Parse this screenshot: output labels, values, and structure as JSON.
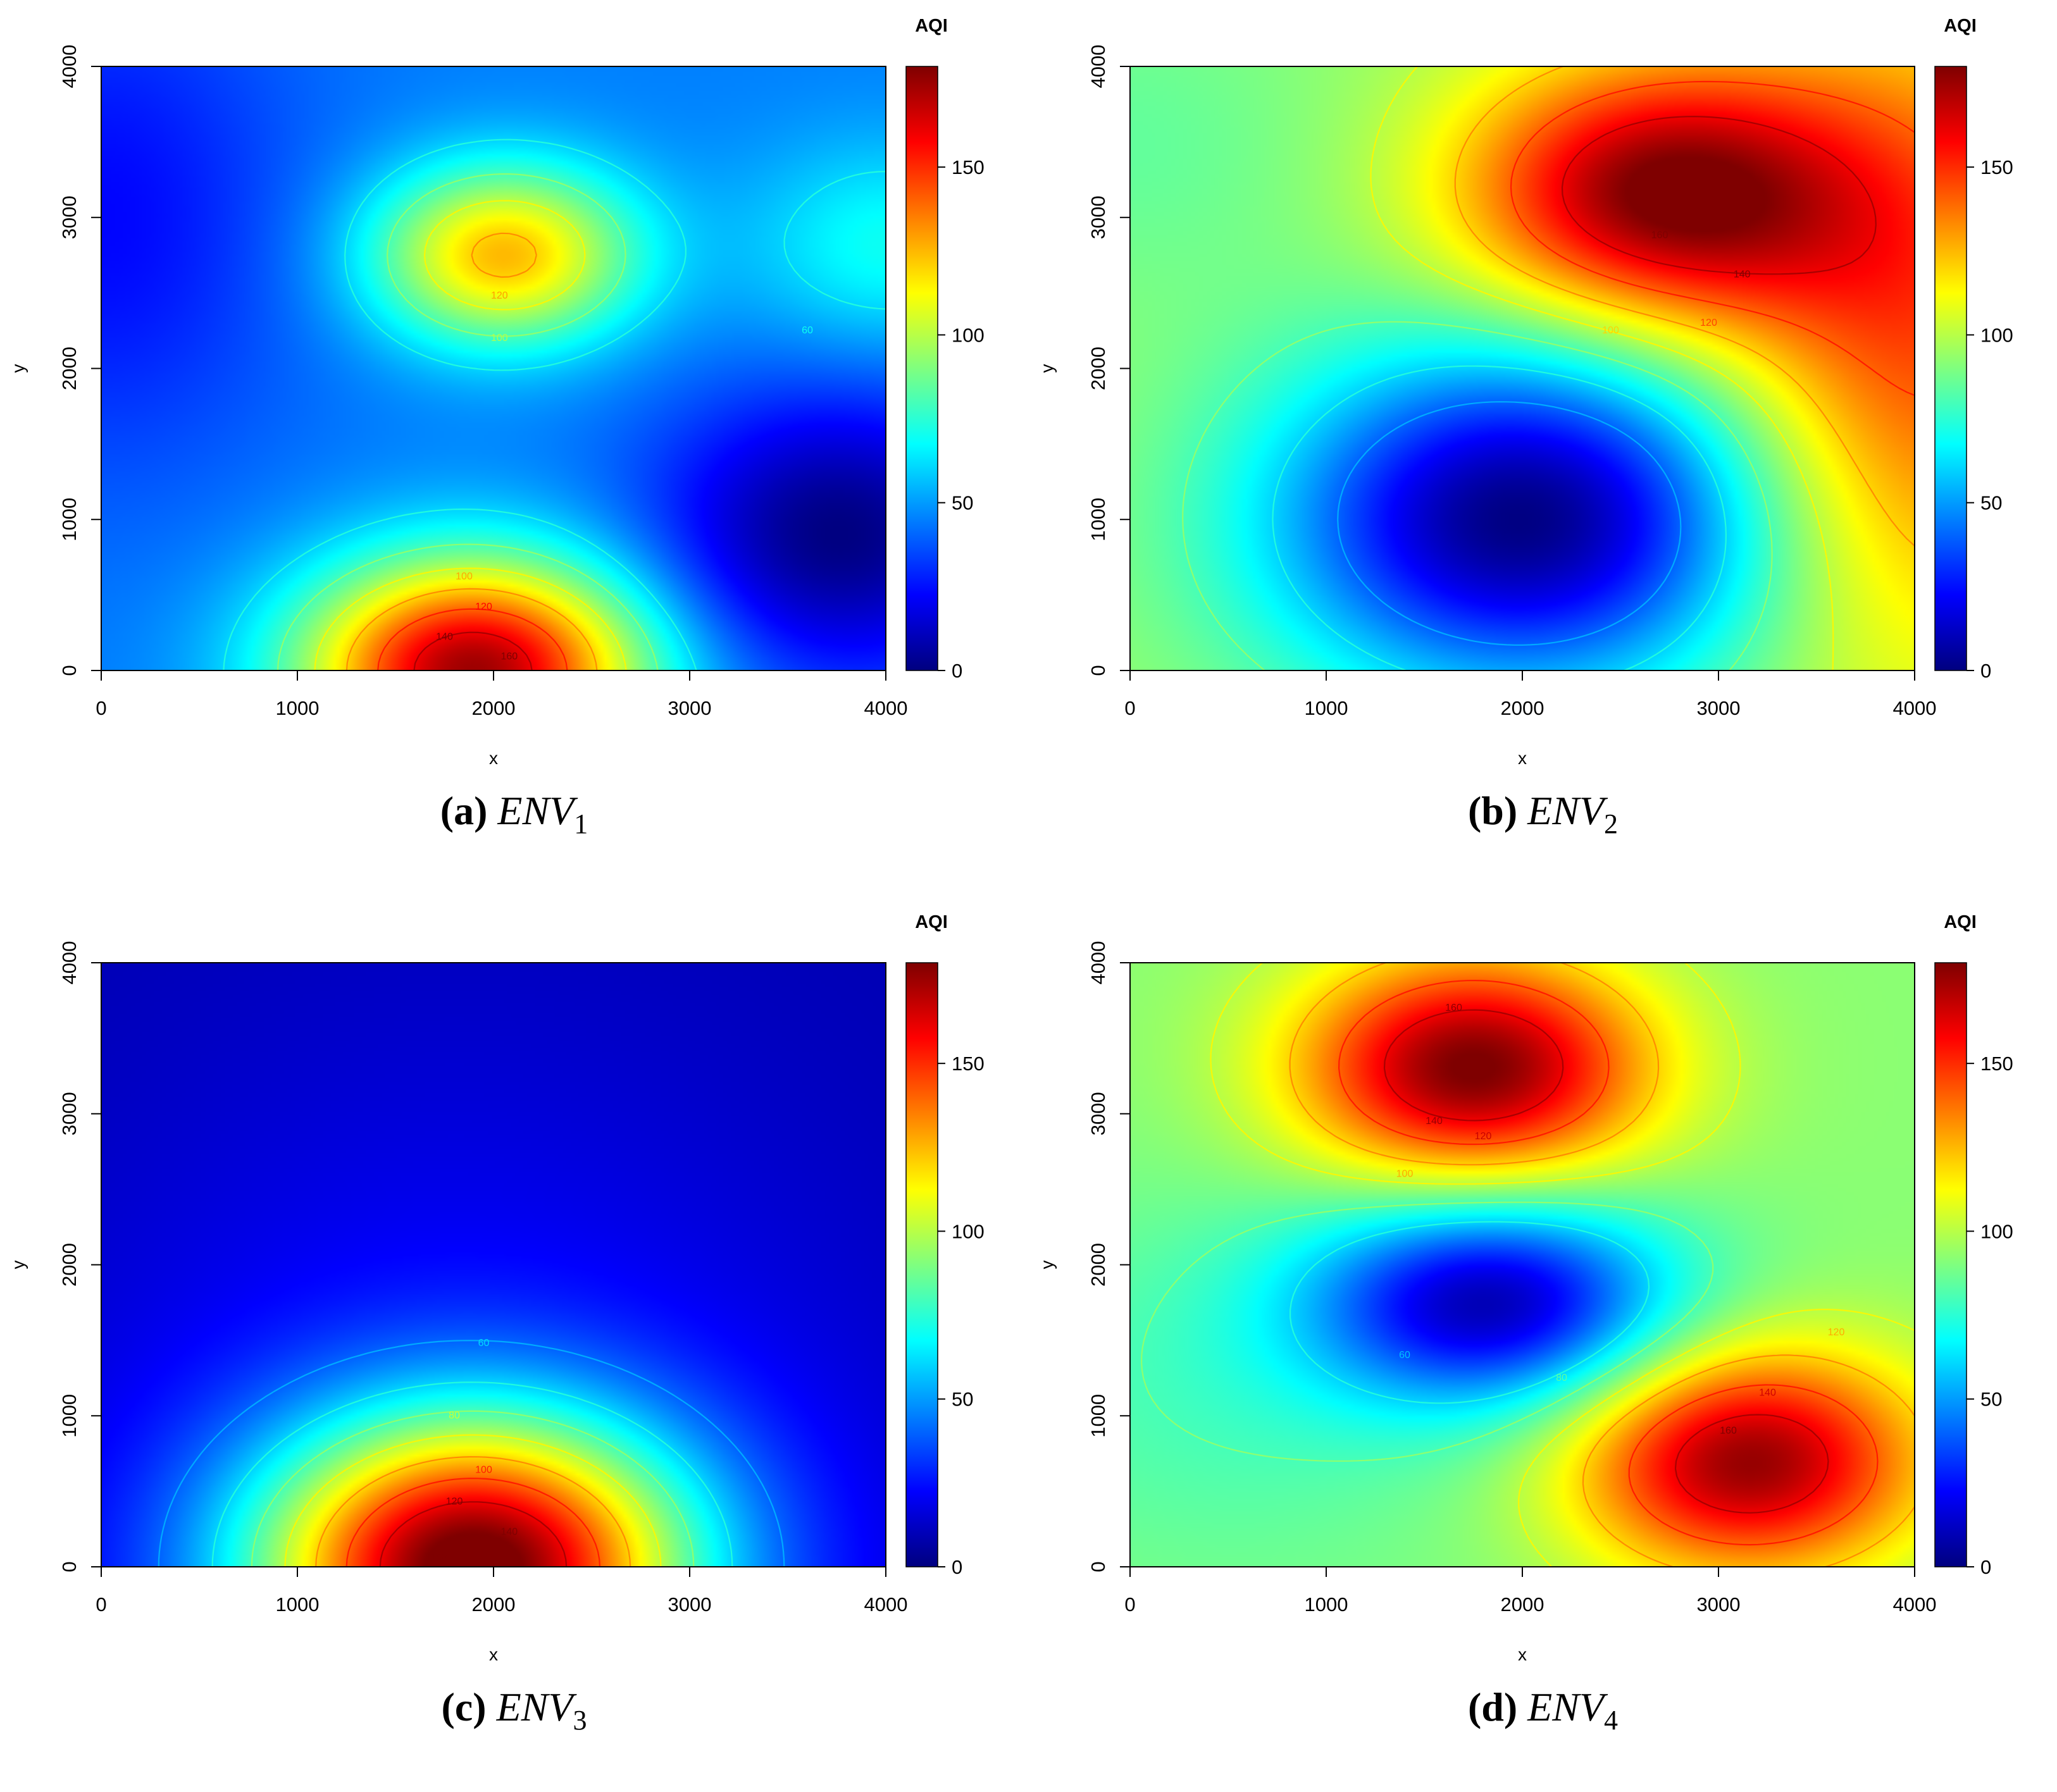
{
  "chart_data": [
    {
      "type": "heatmap",
      "panel_label": "(a)",
      "env_name": "ENV",
      "env_index": "1",
      "xlabel": "x",
      "ylabel": "y",
      "xlim": [
        0,
        4000
      ],
      "ylim": [
        0,
        4000
      ],
      "x_ticks": [
        "0",
        "1000",
        "2000",
        "3000",
        "4000"
      ],
      "y_ticks": [
        "0",
        "1000",
        "2000",
        "3000",
        "4000"
      ],
      "colorbar": {
        "title": "AQI",
        "range": [
          0,
          180
        ],
        "ticks": [
          "0",
          "50",
          "100",
          "150"
        ],
        "colors": [
          "#00007f",
          "#0000ff",
          "#007fff",
          "#00ffff",
          "#7fff7f",
          "#ffff00",
          "#ff7f00",
          "#ff0000",
          "#7f0000"
        ]
      },
      "base_value": 45,
      "field": [
        {
          "x": 1900,
          "y": 0,
          "amp": 130,
          "sx": 620,
          "sy": 520
        },
        {
          "x": 2050,
          "y": 2750,
          "amp": 80,
          "sx": 480,
          "sy": 420
        },
        {
          "x": 4000,
          "y": 2800,
          "amp": 25,
          "sx": 500,
          "sy": 500
        },
        {
          "x": 3750,
          "y": 900,
          "amp": -45,
          "sx": 650,
          "sy": 650
        },
        {
          "x": 0,
          "y": 3000,
          "amp": -22,
          "sx": 700,
          "sy": 1200
        }
      ],
      "contour_levels": [
        60,
        80,
        100,
        120,
        140,
        160
      ],
      "contour_labels": [
        {
          "text": "160",
          "x": 2080,
          "y": 90
        },
        {
          "text": "140",
          "x": 1750,
          "y": 220
        },
        {
          "text": "120",
          "x": 1950,
          "y": 420
        },
        {
          "text": "100",
          "x": 1850,
          "y": 620
        },
        {
          "text": "120",
          "x": 2030,
          "y": 2480
        },
        {
          "text": "100",
          "x": 2030,
          "y": 2200
        },
        {
          "text": "60",
          "x": 3600,
          "y": 2250
        }
      ]
    },
    {
      "type": "heatmap",
      "panel_label": "(b)",
      "env_name": "ENV",
      "env_index": "2",
      "xlabel": "x",
      "ylabel": "y",
      "xlim": [
        0,
        4000
      ],
      "ylim": [
        0,
        4000
      ],
      "x_ticks": [
        "0",
        "1000",
        "2000",
        "3000",
        "4000"
      ],
      "y_ticks": [
        "0",
        "1000",
        "2000",
        "3000",
        "4000"
      ],
      "colorbar": {
        "title": "AQI",
        "range": [
          0,
          180
        ],
        "ticks": [
          "0",
          "50",
          "100",
          "150"
        ],
        "colors": [
          "#00007f",
          "#0000ff",
          "#007fff",
          "#00ffff",
          "#7fff7f",
          "#ffff00",
          "#ff7f00",
          "#ff0000",
          "#7f0000"
        ]
      },
      "base_value": 95,
      "field": [
        {
          "x": 2700,
          "y": 3150,
          "amp": 85,
          "sx": 700,
          "sy": 600
        },
        {
          "x": 4000,
          "y": 2200,
          "amp": 50,
          "sx": 700,
          "sy": 1500
        },
        {
          "x": 2000,
          "y": 1000,
          "amp": -95,
          "sx": 900,
          "sy": 800
        },
        {
          "x": 0,
          "y": 3500,
          "amp": -10,
          "sx": 800,
          "sy": 800
        }
      ],
      "contour_levels": [
        40,
        60,
        80,
        100,
        120,
        140,
        160
      ],
      "contour_labels": [
        {
          "text": "160",
          "x": 2700,
          "y": 2880
        },
        {
          "text": "140",
          "x": 3120,
          "y": 2620
        },
        {
          "text": "120",
          "x": 2950,
          "y": 2300
        },
        {
          "text": "100",
          "x": 2450,
          "y": 2250
        }
      ]
    },
    {
      "type": "heatmap",
      "panel_label": "(c)",
      "env_name": "ENV",
      "env_index": "3",
      "xlabel": "x",
      "ylabel": "y",
      "xlim": [
        0,
        4000
      ],
      "ylim": [
        0,
        4000
      ],
      "x_ticks": [
        "0",
        "1000",
        "2000",
        "3000",
        "4000"
      ],
      "y_ticks": [
        "0",
        "1000",
        "2000",
        "3000",
        "4000"
      ],
      "colorbar": {
        "title": "AQI",
        "range": [
          0,
          180
        ],
        "ticks": [
          "0",
          "50",
          "100",
          "150"
        ],
        "colors": [
          "#00007f",
          "#0000ff",
          "#007fff",
          "#00ffff",
          "#7fff7f",
          "#ffff00",
          "#ff7f00",
          "#ff0000",
          "#7f0000"
        ]
      },
      "base_value": 8,
      "field": [
        {
          "x": 1900,
          "y": 0,
          "amp": 160,
          "sx": 780,
          "sy": 700
        },
        {
          "x": 1800,
          "y": 0,
          "amp": 20,
          "sx": 1600,
          "sy": 2200
        }
      ],
      "contour_levels": [
        40,
        60,
        80,
        100,
        120,
        140,
        160
      ],
      "contour_labels": [
        {
          "text": "160",
          "x": 1720,
          "y": 60
        },
        {
          "text": "140",
          "x": 2080,
          "y": 230
        },
        {
          "text": "120",
          "x": 1800,
          "y": 430
        },
        {
          "text": "100",
          "x": 1950,
          "y": 640
        },
        {
          "text": "80",
          "x": 1800,
          "y": 1000
        },
        {
          "text": "60",
          "x": 1950,
          "y": 1480
        }
      ]
    },
    {
      "type": "heatmap",
      "panel_label": "(d)",
      "env_name": "ENV",
      "env_index": "4",
      "xlabel": "x",
      "ylabel": "y",
      "xlim": [
        0,
        4000
      ],
      "ylim": [
        0,
        4000
      ],
      "x_ticks": [
        "0",
        "1000",
        "2000",
        "3000",
        "4000"
      ],
      "y_ticks": [
        "0",
        "1000",
        "2000",
        "3000",
        "4000"
      ],
      "colorbar": {
        "title": "AQI",
        "range": [
          0,
          180
        ],
        "ticks": [
          "0",
          "50",
          "100",
          "150"
        ],
        "colors": [
          "#00007f",
          "#0000ff",
          "#007fff",
          "#00ffff",
          "#7fff7f",
          "#ffff00",
          "#ff7f00",
          "#ff0000",
          "#7f0000"
        ]
      },
      "base_value": 92,
      "field": [
        {
          "x": 1750,
          "y": 3300,
          "amp": 90,
          "sx": 620,
          "sy": 520
        },
        {
          "x": 3150,
          "y": 700,
          "amp": 85,
          "sx": 620,
          "sy": 520
        },
        {
          "x": 1850,
          "y": 1750,
          "amp": -80,
          "sx": 650,
          "sy": 480
        },
        {
          "x": 500,
          "y": 1200,
          "amp": -12,
          "sx": 1000,
          "sy": 900
        }
      ],
      "contour_levels": [
        60,
        80,
        100,
        120,
        140,
        160
      ],
      "contour_labels": [
        {
          "text": "160",
          "x": 1650,
          "y": 3700
        },
        {
          "text": "140",
          "x": 1550,
          "y": 2950
        },
        {
          "text": "120",
          "x": 1800,
          "y": 2850
        },
        {
          "text": "100",
          "x": 1400,
          "y": 2600
        },
        {
          "text": "120",
          "x": 3600,
          "y": 1550
        },
        {
          "text": "140",
          "x": 3250,
          "y": 1150
        },
        {
          "text": "160",
          "x": 3050,
          "y": 900
        },
        {
          "text": "80",
          "x": 2200,
          "y": 1250
        },
        {
          "text": "60",
          "x": 1400,
          "y": 1400
        }
      ]
    }
  ]
}
